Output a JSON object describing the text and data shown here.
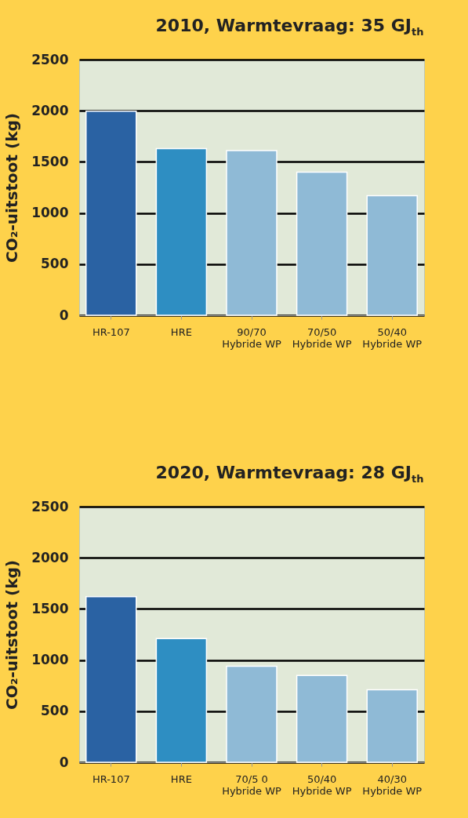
{
  "chart_data": [
    {
      "type": "bar",
      "title": "2010, Warmtevraag: 35 GJ$_{th}$",
      "ylabel": "CO₂-uitstoot (kg)",
      "categories": [
        "HR-107",
        "HRE",
        "90/70\nHybride WP",
        "70/50\nHybride WP",
        "50/40\nHybride WP"
      ],
      "values": [
        1995,
        1630,
        1610,
        1400,
        1170
      ],
      "colors": [
        "#2a62a3",
        "#2e8ec2",
        "#8fbad6",
        "#8fbad6",
        "#8fbad6"
      ],
      "ylim": [
        0,
        2500
      ],
      "yticks": [
        0,
        500,
        1000,
        1500,
        2000,
        2500
      ],
      "grid": "y"
    },
    {
      "type": "bar",
      "title": "2020, Warmtevraag: 28 GJ$_{th}$",
      "ylabel": "CO₂-uitstoot (kg)",
      "categories": [
        "HR-107",
        "HRE",
        "70/5 0\nHybride WP",
        "50/40\nHybride WP",
        "40/30\nHybride WP"
      ],
      "values": [
        1620,
        1210,
        940,
        850,
        710
      ],
      "colors": [
        "#2a62a3",
        "#2e8ec2",
        "#8fbad6",
        "#8fbad6",
        "#8fbad6"
      ],
      "ylim": [
        0,
        2500
      ],
      "yticks": [
        0,
        500,
        1000,
        1500,
        2000,
        2500
      ],
      "grid": "y"
    }
  ]
}
